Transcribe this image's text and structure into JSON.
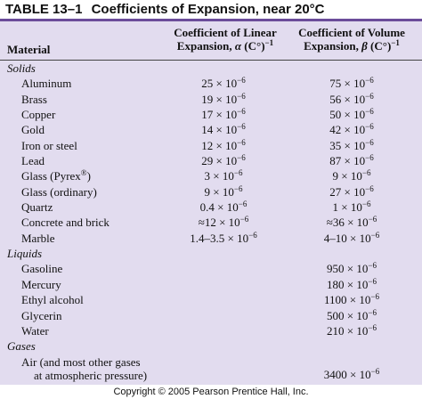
{
  "title": {
    "label": "TABLE 13–1",
    "text": "Coefficients of Expansion, near 20°C"
  },
  "header": {
    "material": "Material",
    "linear_line1": "Coefficient of Linear",
    "linear_line2_pre": "Expansion, ",
    "linear_symbol": "α",
    "linear_unit": " (C°)",
    "linear_exp": "−1",
    "volume_line1": "Coefficient of Volume",
    "volume_line2_pre": "Expansion, ",
    "volume_symbol": "β",
    "volume_unit": " (C°)",
    "volume_exp": "−1"
  },
  "rows": [
    {
      "type": "section",
      "material": "Solids"
    },
    {
      "type": "item",
      "material": "Aluminum",
      "linear": "25 × 10",
      "linear_exp": "−6",
      "volume": "75 × 10",
      "volume_exp": "−6"
    },
    {
      "type": "item",
      "material": "Brass",
      "linear": "19 × 10",
      "linear_exp": "−6",
      "volume": "56 × 10",
      "volume_exp": "−6"
    },
    {
      "type": "item",
      "material": "Copper",
      "linear": "17 × 10",
      "linear_exp": "−6",
      "volume": "50 × 10",
      "volume_exp": "−6"
    },
    {
      "type": "item",
      "material": "Gold",
      "linear": "14 × 10",
      "linear_exp": "−6",
      "volume": "42 × 10",
      "volume_exp": "−6"
    },
    {
      "type": "item",
      "material": "Iron or steel",
      "linear": "12 × 10",
      "linear_exp": "−6",
      "volume": "35 × 10",
      "volume_exp": "−6"
    },
    {
      "type": "item",
      "material": "Lead",
      "linear": "29 × 10",
      "linear_exp": "−6",
      "volume": "87 × 10",
      "volume_exp": "−6"
    },
    {
      "type": "item",
      "material": "Glass (Pyrex",
      "material_sup": "®",
      "material_post": ")",
      "linear": "3 × 10",
      "linear_exp": "−6",
      "volume": "9 × 10",
      "volume_exp": "−6"
    },
    {
      "type": "item",
      "material": "Glass (ordinary)",
      "linear": "9 × 10",
      "linear_exp": "−6",
      "volume": "27 × 10",
      "volume_exp": "−6"
    },
    {
      "type": "item",
      "material": "Quartz",
      "linear": "0.4 × 10",
      "linear_exp": "−6",
      "volume": "1 × 10",
      "volume_exp": "−6"
    },
    {
      "type": "item",
      "material": "Concrete and brick",
      "linear": "≈12 × 10",
      "linear_exp": "−6",
      "volume": "≈36 × 10",
      "volume_exp": "−6"
    },
    {
      "type": "item",
      "material": "Marble",
      "linear": "1.4–3.5 × 10",
      "linear_exp": "−6",
      "volume": "4–10 × 10",
      "volume_exp": "−6"
    },
    {
      "type": "section",
      "material": "Liquids"
    },
    {
      "type": "item",
      "material": "Gasoline",
      "linear": "",
      "linear_exp": "",
      "volume": "950 × 10",
      "volume_exp": "−6"
    },
    {
      "type": "item",
      "material": "Mercury",
      "linear": "",
      "linear_exp": "",
      "volume": "180 × 10",
      "volume_exp": "−6"
    },
    {
      "type": "item",
      "material": "Ethyl alcohol",
      "linear": "",
      "linear_exp": "",
      "volume": "1100 × 10",
      "volume_exp": "−6"
    },
    {
      "type": "item",
      "material": "Glycerin",
      "linear": "",
      "linear_exp": "",
      "volume": "500 × 10",
      "volume_exp": "−6"
    },
    {
      "type": "item",
      "material": "Water",
      "linear": "",
      "linear_exp": "",
      "volume": "210 × 10",
      "volume_exp": "−6"
    },
    {
      "type": "section",
      "material": "Gases"
    },
    {
      "type": "item2",
      "material": "Air (and most other gases",
      "material_line2": "at atmospheric pressure)",
      "linear": "",
      "linear_exp": "",
      "volume": "3400 × 10",
      "volume_exp": "−6"
    }
  ],
  "copyright": "Copyright © 2005 Pearson Prentice Hall, Inc."
}
